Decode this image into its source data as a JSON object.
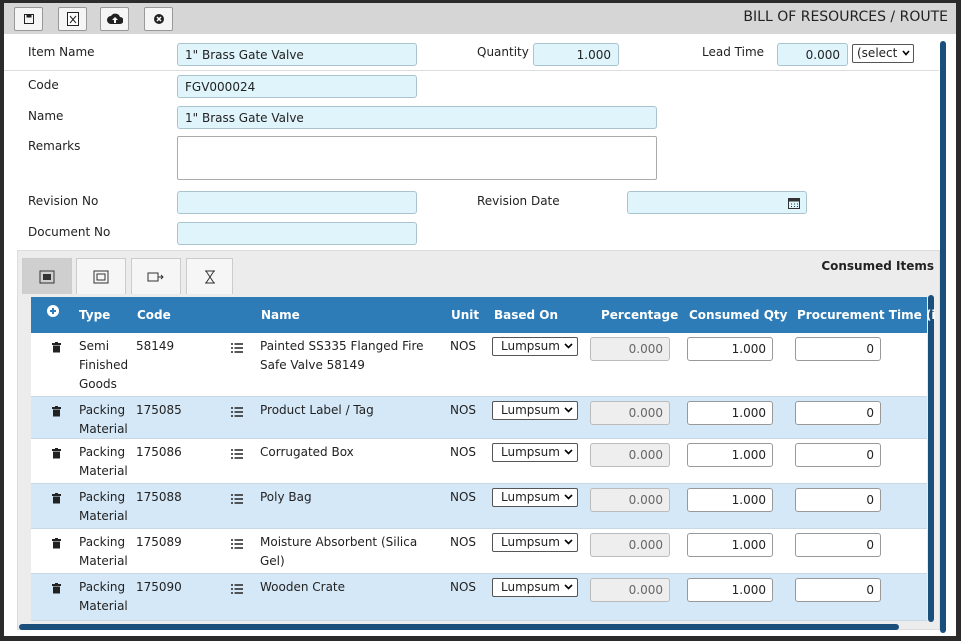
{
  "header": {
    "title": "BILL OF RESOURCES / ROUTE"
  },
  "form": {
    "item_name": {
      "label": "Item Name",
      "value": "1\" Brass Gate Valve"
    },
    "quantity": {
      "label": "Quantity",
      "value": "1.000"
    },
    "lead_time": {
      "label": "Lead Time",
      "value": "0.000",
      "unit": "(select"
    },
    "code": {
      "label": "Code",
      "value": "FGV000024"
    },
    "name": {
      "label": "Name",
      "value": "1\" Brass Gate Valve"
    },
    "remarks": {
      "label": "Remarks"
    },
    "revision_no": {
      "label": "Revision No"
    },
    "revision_date": {
      "label": "Revision Date"
    },
    "document_no": {
      "label": "Document No"
    }
  },
  "panel": {
    "title": "Consumed Items"
  },
  "table": {
    "columns": [
      "Type",
      "Code",
      "Name",
      "Unit",
      "Based On",
      "Percentage",
      "Consumed Qty",
      "Procurement Time (i"
    ],
    "rows": [
      [
        "Semi Finished Goods",
        "58149",
        "Painted SS335 Flanged Fire Safe Valve 58149",
        "NOS",
        "Lumpsum",
        "0.000",
        "1.000",
        "0"
      ],
      [
        "Packing Material",
        "175085",
        "Product Label / Tag",
        "NOS",
        "Lumpsum",
        "0.000",
        "1.000",
        "0"
      ],
      [
        "Packing Material",
        "175086",
        "Corrugated Box",
        "NOS",
        "Lumpsum",
        "0.000",
        "1.000",
        "0"
      ],
      [
        "Packing Material",
        "175088",
        "Poly Bag",
        "NOS",
        "Lumpsum",
        "0.000",
        "1.000",
        "0"
      ],
      [
        "Packing Material",
        "175089",
        "Moisture Absorbent (Silica Gel)",
        "NOS",
        "Lumpsum",
        "0.000",
        "1.000",
        "0"
      ],
      [
        "Packing Material",
        "175090",
        "Wooden Crate",
        "NOS",
        "Lumpsum",
        "0.000",
        "1.000",
        "0"
      ]
    ]
  }
}
